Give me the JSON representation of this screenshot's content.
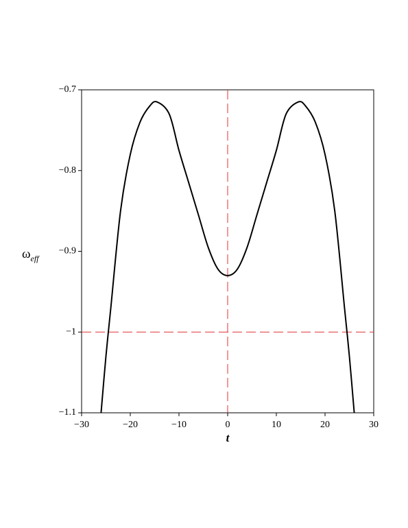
{
  "chart_data": {
    "type": "line",
    "xlabel": "t",
    "ylabel": {
      "main": "ω",
      "sub": "eff"
    },
    "x": [
      -26,
      -25,
      -24,
      -22,
      -20,
      -18,
      -16,
      -14.5,
      -12,
      -10,
      -8,
      -6,
      -4,
      -2,
      0,
      2,
      4,
      6,
      8,
      10,
      12,
      14.5,
      16,
      18,
      20,
      22,
      24,
      25,
      26
    ],
    "series": [
      {
        "color": "#000000",
        "values": [
          -1.1,
          -1.03,
          -0.97,
          -0.85,
          -0.78,
          -0.74,
          -0.72,
          -0.715,
          -0.73,
          -0.775,
          -0.815,
          -0.855,
          -0.895,
          -0.922,
          -0.93,
          -0.922,
          -0.895,
          -0.855,
          -0.815,
          -0.775,
          -0.73,
          -0.715,
          -0.72,
          -0.74,
          -0.78,
          -0.85,
          -0.97,
          -1.03,
          -1.1
        ]
      }
    ],
    "xlim": [
      -30,
      30
    ],
    "ylim": [
      -1.1,
      -0.7
    ],
    "xticks": [
      {
        "value": -30,
        "label": "−30"
      },
      {
        "value": -20,
        "label": "−20"
      },
      {
        "value": -10,
        "label": "−10"
      },
      0,
      10,
      20,
      30
    ],
    "yticks": [
      {
        "value": -1.1,
        "label": "−1.1"
      },
      {
        "value": -1,
        "label": "−1"
      },
      {
        "value": -0.9,
        "label": "−0.9"
      },
      {
        "value": -0.8,
        "label": "−0.8"
      },
      {
        "value": -0.7,
        "label": "−0.7"
      }
    ],
    "reference_lines": {
      "x": 0,
      "y": -1,
      "color": "#e03030"
    }
  }
}
